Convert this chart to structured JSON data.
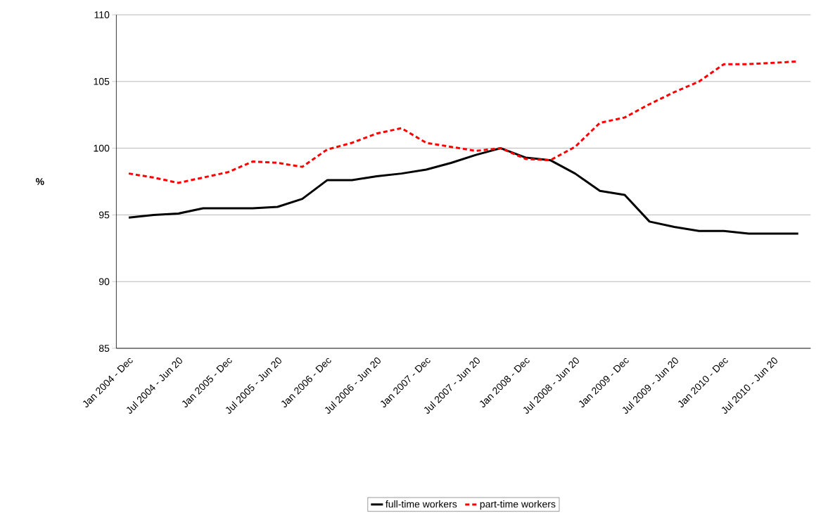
{
  "chart_data": {
    "type": "line",
    "ylabel": "%",
    "categories": [
      "Jan 2004 - Dec",
      null,
      "Jul 2004 - Jun 20",
      null,
      "Jan 2005 - Dec",
      null,
      "Jul 2005 - Jun 20",
      null,
      "Jan 2006 - Dec",
      null,
      "Jul 2006 - Jun 20",
      null,
      "Jan 2007 - Dec",
      null,
      "Jul 2007 - Jun 20",
      null,
      "Jan 2008 - Dec",
      null,
      "Jul 2008 - Jun 20",
      null,
      "Jan 2009 - Dec",
      null,
      "Jul 2009 - Jun 20",
      null,
      "Jan 2010 - Dec",
      null,
      "Jul 2010 - Jun 20",
      null
    ],
    "series": [
      {
        "name": "full-time workers",
        "color": "#000000",
        "line_style": "solid",
        "values": [
          94.8,
          95.0,
          95.1,
          95.5,
          95.5,
          95.5,
          95.6,
          96.2,
          97.6,
          97.6,
          97.9,
          98.1,
          98.4,
          98.9,
          99.5,
          100.0,
          99.3,
          99.1,
          98.1,
          96.8,
          96.5,
          94.5,
          94.1,
          93.8,
          93.8,
          93.6,
          93.6,
          93.6
        ]
      },
      {
        "name": "part-time workers",
        "color": "#ff0000",
        "line_style": "dashed",
        "values": [
          98.1,
          97.8,
          97.4,
          97.8,
          98.2,
          99.0,
          98.9,
          98.6,
          99.9,
          100.4,
          101.1,
          101.5,
          100.4,
          100.1,
          99.8,
          100.0,
          99.2,
          99.1,
          100.1,
          101.9,
          102.3,
          103.3,
          104.2,
          105.0,
          106.3,
          106.3,
          106.4,
          106.5
        ]
      }
    ],
    "ylim": [
      85,
      110
    ],
    "yticks": [
      85,
      90,
      95,
      100,
      105,
      110
    ],
    "grid": "y",
    "legend": "bottom",
    "marker": "none"
  }
}
